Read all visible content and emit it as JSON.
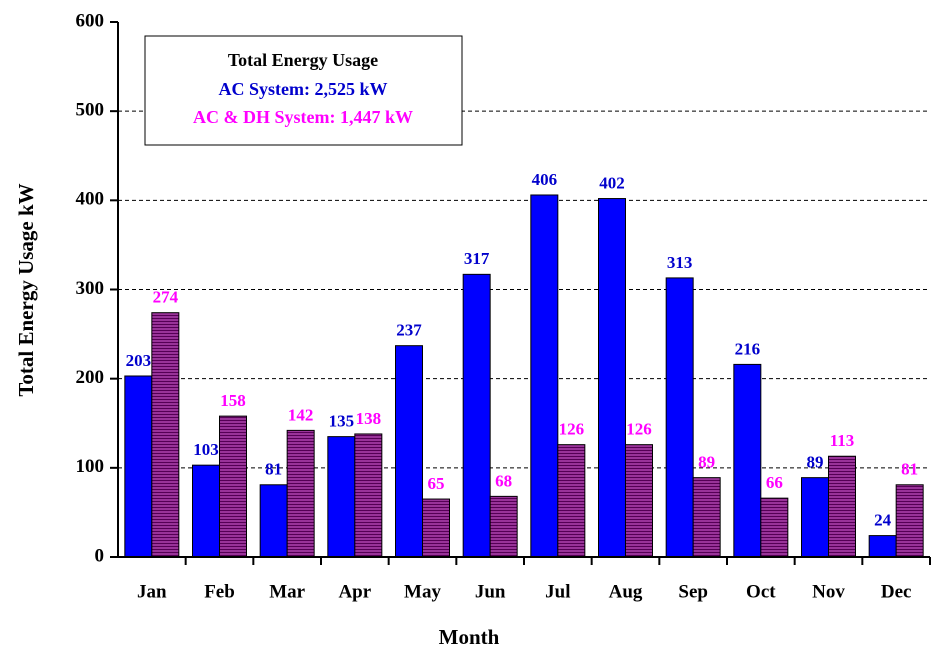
{
  "chart_data": {
    "type": "bar",
    "x_label": "Month",
    "y_label": "Total Energy Usage   kW",
    "legend_title": "Total Energy Usage",
    "categories": [
      "Jan",
      "Feb",
      "Mar",
      "Apr",
      "May",
      "Jun",
      "Jul",
      "Aug",
      "Sep",
      "Oct",
      "Nov",
      "Dec"
    ],
    "series": [
      {
        "name": "AC System: 2,525 kW",
        "color": "#0000ff",
        "label_color": "#0000cc",
        "values": [
          203,
          103,
          81,
          135,
          237,
          317,
          406,
          402,
          313,
          216,
          89,
          24
        ]
      },
      {
        "name": "AC & DH System: 1,447 kW",
        "color": "#993399",
        "label_color": "#ff00ff",
        "values": [
          274,
          158,
          142,
          138,
          65,
          68,
          126,
          126,
          89,
          66,
          113,
          81
        ]
      }
    ],
    "ylim": [
      0,
      600
    ],
    "yticks": [
      0,
      100,
      200,
      300,
      400,
      500,
      600
    ],
    "grid": true
  }
}
